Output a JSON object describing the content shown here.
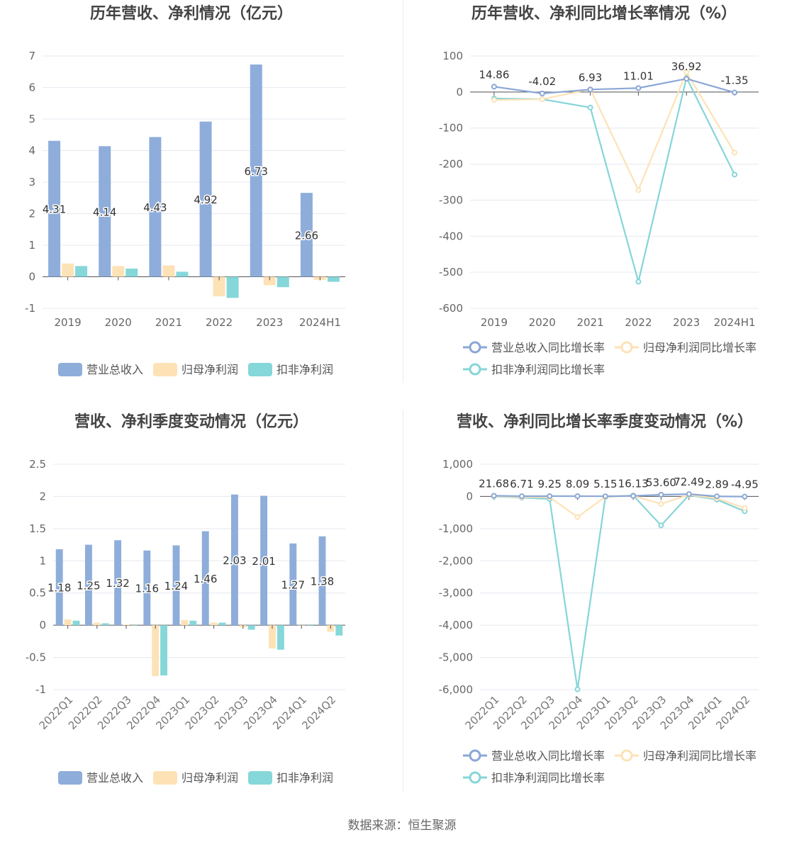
{
  "footer": {
    "source": "数据来源：恒生聚源"
  },
  "colors": {
    "revenue": "#8eadda",
    "net_profit": "#fde2b6",
    "deducted_profit": "#86d7d9",
    "revenue_line": "#8aa7d6",
    "net_line": "#fde2b6",
    "deducted_line": "#86d5d8"
  },
  "chart_data": [
    {
      "id": "annual-amount",
      "type": "bar",
      "title": "历年营收、净利情况（亿元）",
      "categories": [
        "2019",
        "2020",
        "2021",
        "2022",
        "2023",
        "2024H1"
      ],
      "yticks": [
        "7",
        "6",
        "5",
        "4",
        "3",
        "2",
        "1",
        "0",
        "-1"
      ],
      "ylim": [
        -1,
        7
      ],
      "series": [
        {
          "name": "营业总收入",
          "values": [
            4.31,
            4.14,
            4.43,
            4.92,
            6.73,
            2.66
          ],
          "labels": [
            "4.31",
            "4.14",
            "4.43",
            "4.92",
            "6.73",
            "2.66"
          ]
        },
        {
          "name": "归母净利润",
          "values": [
            0.42,
            0.34,
            0.36,
            -0.62,
            -0.27,
            -0.1
          ]
        },
        {
          "name": "扣非净利润",
          "values": [
            0.34,
            0.26,
            0.16,
            -0.67,
            -0.33,
            -0.16
          ]
        }
      ],
      "legend": "bottom",
      "grid": true
    },
    {
      "id": "annual-growth",
      "type": "line",
      "title": "历年营收、净利同比增长率情况（%）",
      "categories": [
        "2019",
        "2020",
        "2021",
        "2022",
        "2023",
        "2024H1"
      ],
      "yticks": [
        "100",
        "0",
        "-100",
        "-200",
        "-300",
        "-400",
        "-500",
        "-600"
      ],
      "ylim": [
        -600,
        100
      ],
      "series": [
        {
          "name": "营业总收入同比增长率",
          "values": [
            14.86,
            -4.02,
            6.93,
            11.01,
            36.92,
            -1.35
          ],
          "labels": [
            "14.86",
            "-4.02",
            "6.93",
            "11.01",
            "36.92",
            "-1.35"
          ]
        },
        {
          "name": "归母净利润同比增长率",
          "values": [
            -22,
            -20,
            8,
            -272,
            55,
            -168
          ]
        },
        {
          "name": "扣非净利润同比增长率",
          "values": [
            -18,
            -20,
            -43,
            -526,
            40,
            -229
          ]
        }
      ],
      "legend": "bottom",
      "grid": true
    },
    {
      "id": "quarterly-amount",
      "type": "bar",
      "title": "营收、净利季度变动情况（亿元）",
      "categories": [
        "2022Q1",
        "2022Q2",
        "2022Q3",
        "2022Q4",
        "2023Q1",
        "2023Q2",
        "2023Q3",
        "2023Q4",
        "2024Q1",
        "2024Q2"
      ],
      "yticks": [
        "2.5",
        "2",
        "1.5",
        "1",
        "0.5",
        "0",
        "-0.5",
        "-1"
      ],
      "ylim": [
        -1,
        2.5
      ],
      "series": [
        {
          "name": "营业总收入",
          "values": [
            1.18,
            1.25,
            1.32,
            1.16,
            1.24,
            1.46,
            2.03,
            2.01,
            1.27,
            1.38
          ],
          "labels": [
            "1.18",
            "1.25",
            "1.32",
            "1.16",
            "1.24",
            "1.46",
            "2.03",
            "2.01",
            "1.27",
            "1.38"
          ]
        },
        {
          "name": "归母净利润",
          "values": [
            0.09,
            0.04,
            0.01,
            -0.79,
            0.08,
            0.04,
            -0.03,
            -0.36,
            0.0,
            -0.1
          ]
        },
        {
          "name": "扣非净利润",
          "values": [
            0.07,
            0.03,
            0.0,
            -0.78,
            0.07,
            0.04,
            -0.07,
            -0.38,
            -0.01,
            -0.16
          ]
        }
      ],
      "legend": "bottom",
      "grid": true
    },
    {
      "id": "quarterly-growth",
      "type": "line",
      "title": "营收、净利同比增长率季度变动情况（%）",
      "categories": [
        "2022Q1",
        "2022Q2",
        "2022Q3",
        "2022Q4",
        "2023Q1",
        "2023Q2",
        "2023Q3",
        "2023Q4",
        "2024Q1",
        "2024Q2"
      ],
      "yticks": [
        "1,000",
        "0",
        "-1,000",
        "-2,000",
        "-3,000",
        "-4,000",
        "-5,000",
        "-6,000"
      ],
      "ylim": [
        -6000,
        1000
      ],
      "series": [
        {
          "name": "营业总收入同比增长率",
          "values": [
            21.68,
            6.71,
            9.25,
            8.09,
            5.15,
            16.13,
            53.6,
            72.49,
            2.89,
            -4.95
          ],
          "labels": [
            "21.68",
            "6.71",
            "9.25",
            "8.09",
            "5.15",
            "16.13",
            "53.60",
            "72.49",
            "2.89",
            "-4.95"
          ]
        },
        {
          "name": "归母净利润同比增长率",
          "values": [
            10,
            -25,
            -20,
            -640,
            -10,
            20,
            -230,
            50,
            -60,
            -360
          ]
        },
        {
          "name": "扣非净利润同比增长率",
          "values": [
            0,
            -40,
            -80,
            -5990,
            -20,
            30,
            -900,
            40,
            -100,
            -460
          ]
        }
      ],
      "legend": "bottom",
      "grid": true
    }
  ]
}
